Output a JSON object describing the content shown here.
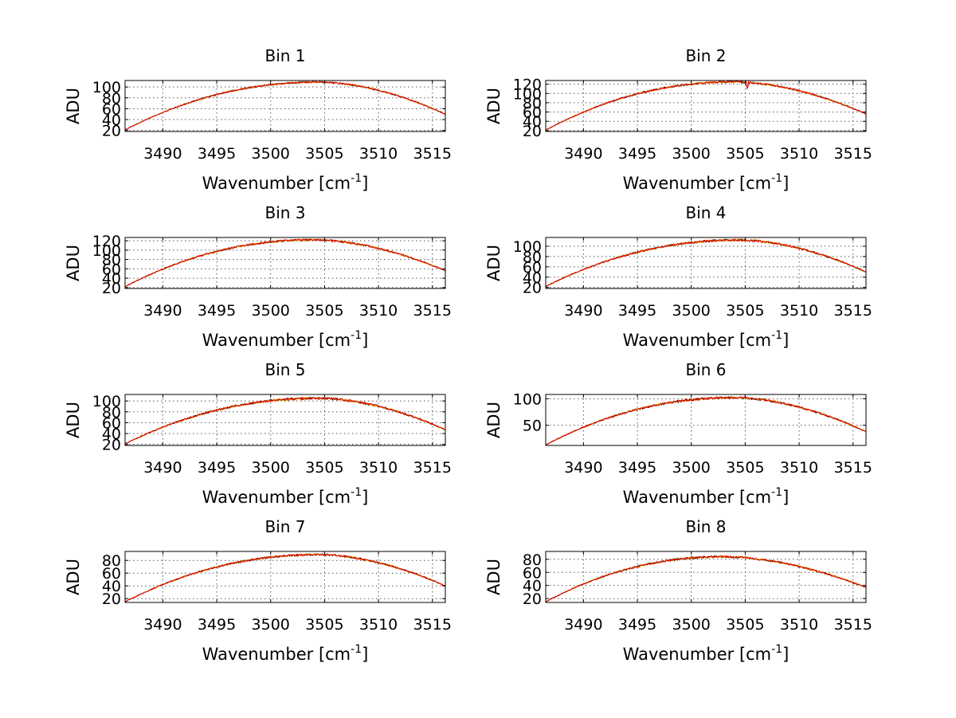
{
  "chart_data": [
    {
      "type": "line",
      "title": "Bin 1",
      "xlabel": "Wavenumber [cm",
      "xlabel_sup": "-1",
      "xlabel_end": "]",
      "ylabel": "ADU",
      "xlim": [
        3486.5,
        3516.2
      ],
      "ylim": [
        18,
        112
      ],
      "xticks": [
        3490,
        3495,
        3500,
        3505,
        3510,
        3515
      ],
      "yticks": [
        20,
        40,
        60,
        80,
        100
      ],
      "grid": true,
      "profile": {
        "peak_x": 3504.5,
        "peak_y": 109,
        "left_y": 21,
        "right_y": 50,
        "noise": 1.5
      },
      "colors": [
        "#000000",
        "#ffaa00",
        "#dd0000"
      ]
    },
    {
      "type": "line",
      "title": "Bin 2",
      "xlabel": "Wavenumber [cm",
      "xlabel_sup": "-1",
      "xlabel_end": "]",
      "ylabel": "ADU",
      "xlim": [
        3486.5,
        3516.2
      ],
      "ylim": [
        18,
        128
      ],
      "xticks": [
        3490,
        3495,
        3500,
        3505,
        3510,
        3515
      ],
      "yticks": [
        20,
        40,
        60,
        80,
        100,
        120
      ],
      "grid": true,
      "profile": {
        "peak_x": 3504,
        "peak_y": 125,
        "left_y": 21,
        "right_y": 56,
        "noise": 2
      },
      "dips": [
        {
          "x": 3505.2,
          "depth": 18
        }
      ],
      "colors": [
        "#000000",
        "#ffaa00",
        "#dd0000"
      ]
    },
    {
      "type": "line",
      "title": "Bin 3",
      "xlabel": "Wavenumber [cm",
      "xlabel_sup": "-1",
      "xlabel_end": "]",
      "ylabel": "ADU",
      "xlim": [
        3486.5,
        3516.2
      ],
      "ylim": [
        18,
        127
      ],
      "xticks": [
        3490,
        3495,
        3500,
        3505,
        3510,
        3515
      ],
      "yticks": [
        20,
        40,
        60,
        80,
        100,
        120
      ],
      "grid": true,
      "profile": {
        "peak_x": 3504,
        "peak_y": 122,
        "left_y": 22,
        "right_y": 56,
        "noise": 2
      },
      "colors": [
        "#000000",
        "#ffaa00",
        "#dd0000"
      ]
    },
    {
      "type": "line",
      "title": "Bin 4",
      "xlabel": "Wavenumber [cm",
      "xlabel_sup": "-1",
      "xlabel_end": "]",
      "ylabel": "ADU",
      "xlim": [
        3486.5,
        3516.2
      ],
      "ylim": [
        18,
        117
      ],
      "xticks": [
        3490,
        3495,
        3500,
        3505,
        3510,
        3515
      ],
      "yticks": [
        20,
        40,
        60,
        80,
        100
      ],
      "grid": true,
      "profile": {
        "peak_x": 3504.5,
        "peak_y": 112,
        "left_y": 22,
        "right_y": 50,
        "noise": 2
      },
      "colors": [
        "#000000",
        "#ffaa00",
        "#dd0000"
      ]
    },
    {
      "type": "line",
      "title": "Bin 5",
      "xlabel": "Wavenumber [cm",
      "xlabel_sup": "-1",
      "xlabel_end": "]",
      "ylabel": "ADU",
      "xlim": [
        3486.5,
        3516.2
      ],
      "ylim": [
        18,
        112
      ],
      "xticks": [
        3490,
        3495,
        3500,
        3505,
        3510,
        3515
      ],
      "yticks": [
        20,
        40,
        60,
        80,
        100
      ],
      "grid": true,
      "profile": {
        "peak_x": 3504.5,
        "peak_y": 105,
        "left_y": 21,
        "right_y": 47,
        "noise": 2
      },
      "colors": [
        "#000000",
        "#ffaa00",
        "#dd0000"
      ]
    },
    {
      "type": "line",
      "title": "Bin 6",
      "xlabel": "Wavenumber [cm",
      "xlabel_sup": "-1",
      "xlabel_end": "]",
      "ylabel": "ADU",
      "xlim": [
        3486.5,
        3516.2
      ],
      "ylim": [
        12,
        108
      ],
      "xticks": [
        3490,
        3495,
        3500,
        3505,
        3510,
        3515
      ],
      "yticks": [
        50,
        100
      ],
      "grid": true,
      "profile": {
        "peak_x": 3504,
        "peak_y": 102,
        "left_y": 13,
        "right_y": 38,
        "noise": 2
      },
      "colors": [
        "#000000",
        "#ffaa00",
        "#dd0000"
      ]
    },
    {
      "type": "line",
      "title": "Bin 7",
      "xlabel": "Wavenumber [cm",
      "xlabel_sup": "-1",
      "xlabel_end": "]",
      "ylabel": "ADU",
      "xlim": [
        3486.5,
        3516.2
      ],
      "ylim": [
        14,
        94
      ],
      "xticks": [
        3490,
        3495,
        3500,
        3505,
        3510,
        3515
      ],
      "yticks": [
        20,
        40,
        60,
        80
      ],
      "grid": true,
      "profile": {
        "peak_x": 3504.5,
        "peak_y": 89,
        "left_y": 15,
        "right_y": 40,
        "noise": 1.5
      },
      "colors": [
        "#000000",
        "#ffaa00",
        "#dd0000"
      ]
    },
    {
      "type": "line",
      "title": "Bin 8",
      "xlabel": "Wavenumber [cm",
      "xlabel_sup": "-1",
      "xlabel_end": "]",
      "ylabel": "ADU",
      "xlim": [
        3486.5,
        3516.2
      ],
      "ylim": [
        14,
        92
      ],
      "xticks": [
        3490,
        3495,
        3500,
        3505,
        3510,
        3515
      ],
      "yticks": [
        20,
        40,
        60,
        80
      ],
      "grid": true,
      "profile": {
        "peak_x": 3503,
        "peak_y": 84,
        "left_y": 15,
        "right_y": 37,
        "noise": 1.5
      },
      "colors": [
        "#000000",
        "#ffaa00",
        "#dd0000"
      ]
    }
  ]
}
